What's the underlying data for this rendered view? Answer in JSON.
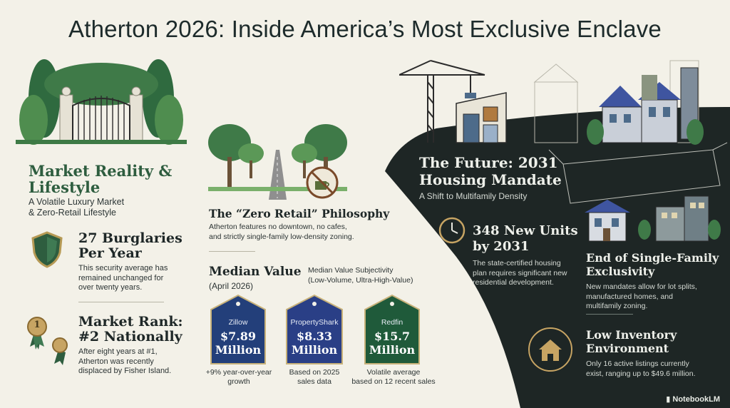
{
  "title": "Atherton 2026: Inside America’s Most Exclusive Enclave",
  "left": {
    "heading": "Market Reality & Lifestyle",
    "subheading_line1": "A Volatile Luxury Market",
    "subheading_line2": "& Zero-Retail Lifestyle",
    "burglary": {
      "title_line1": "27 Burglaries",
      "title_line2": "Per Year",
      "body_line1": "This security average has",
      "body_line2": "remained unchanged for",
      "body_line3": "over twenty years."
    },
    "rank": {
      "medal_number": "1",
      "title_line1": "Market Rank:",
      "title_line2": "#2 Nationally",
      "body_line1": "After eight years at #1,",
      "body_line2": "Atherton was recently",
      "body_line3": "displaced by Fisher Island."
    }
  },
  "middle": {
    "zero_retail_title": "The “Zero Retail” Philosophy",
    "zero_retail_body_line1": "Atherton features no downtown, no cafes,",
    "zero_retail_body_line2": "and strictly single-family low-density zoning.",
    "median_title": "Median Value",
    "median_date": "(April 2026)",
    "median_note_line1": "Median Value Subjectivity",
    "median_note_line2": "(Low-Volume, Ultra-High-Value)",
    "tags": [
      {
        "name": "Zillow",
        "price_line1": "$7.89",
        "price_line2": "Million",
        "color": "#233f7a",
        "caption_line1": "+9% year-over-year",
        "caption_line2": "growth"
      },
      {
        "name": "PropertyShark",
        "price_line1": "$8.33",
        "price_line2": "Million",
        "color": "#2a3f86",
        "caption_line1": "Based on 2025",
        "caption_line2": "sales data"
      },
      {
        "name": "Redfin",
        "price_line1": "$15.7",
        "price_line2": "Million",
        "color": "#1f5a3a",
        "caption_line1": "Volatile average",
        "caption_line2": "based on 12 recent sales"
      }
    ]
  },
  "right": {
    "heading_line1": "The Future: 2031",
    "heading_line2": "Housing Mandate",
    "subheading": "A Shift to Multifamily Density",
    "units": {
      "title_line1": "348 New Units",
      "title_line2": "by 2031",
      "body_line1": "The state-certified housing",
      "body_line2": "plan requires significant new",
      "body_line3": "residential development."
    },
    "exclusivity": {
      "title_line1": "End of Single-Family",
      "title_line2": "Exclusivity",
      "body_line1": "New mandates allow for lot splits,",
      "body_line2": "manufactured homes, and",
      "body_line3": "multifamily zoning."
    },
    "inventory": {
      "title_line1": "Low Inventory",
      "title_line2": "Environment",
      "body_line1": "Only 16 active listings currently",
      "body_line2": "exist, ranging up to $49.6 million."
    }
  },
  "footer": {
    "logo": "NotebookLM"
  },
  "colors": {
    "background": "#f3f1e8",
    "dark_panel": "#1e2625",
    "green": "#2e5d3f",
    "navy": "#233f7a"
  }
}
